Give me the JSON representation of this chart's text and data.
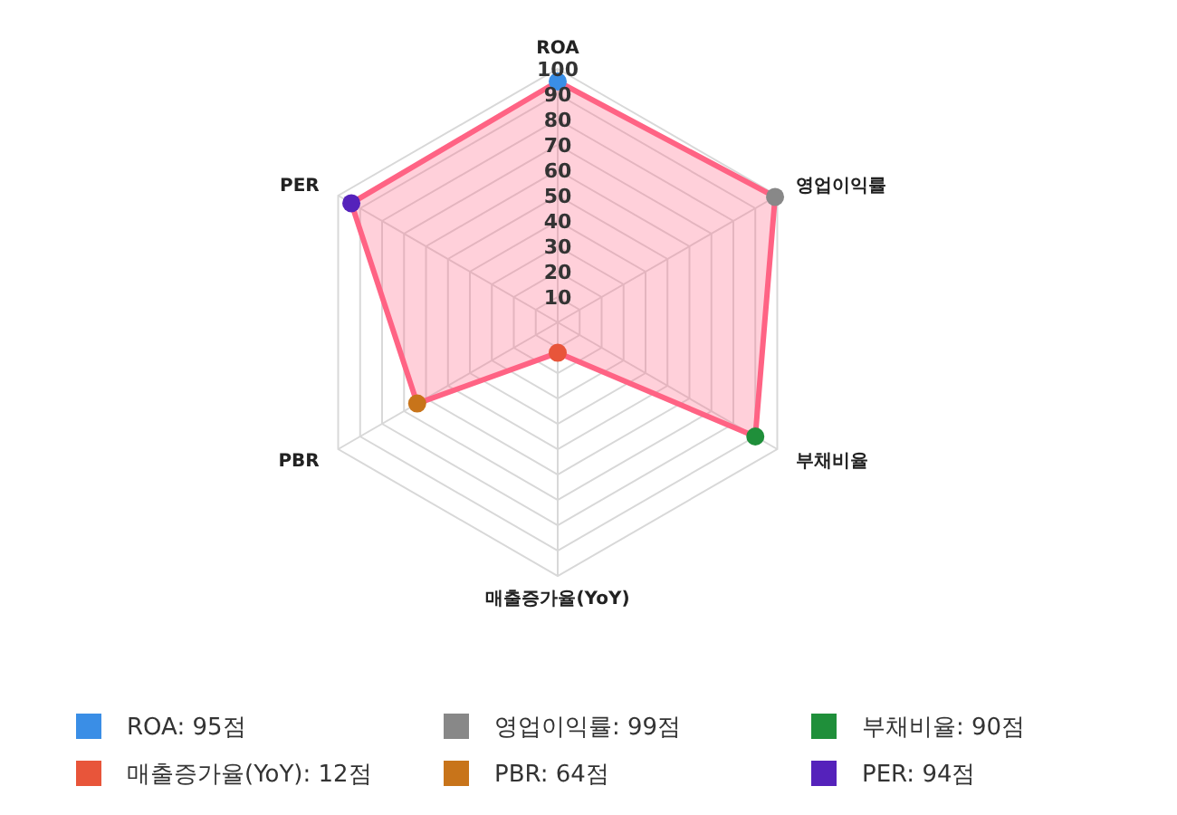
{
  "chart_data": {
    "type": "radar",
    "categories": [
      "ROA",
      "영업이익률",
      "부채비율",
      "매출증가율(YoY)",
      "PBR",
      "PER"
    ],
    "series": [
      {
        "color": "#ff6384",
        "colors": [
          "#3a8ee6",
          "#888888",
          "#1f8f3a",
          "#e8553a",
          "#c8741a",
          "#5522bb"
        ],
        "values": [
          95,
          99,
          90,
          12,
          64,
          94
        ]
      }
    ],
    "annotations": [
      "ROA: 95점",
      "영업이익률: 99점",
      "부채비율: 90점",
      "매출증가율(YoY): 12점",
      "PBR: 64점",
      "PER: 94점"
    ],
    "ylim": [
      0,
      100
    ],
    "yticks": [
      10,
      20,
      30,
      40,
      50,
      60,
      70,
      80,
      90,
      100
    ],
    "grid": true,
    "marker": "circle"
  }
}
